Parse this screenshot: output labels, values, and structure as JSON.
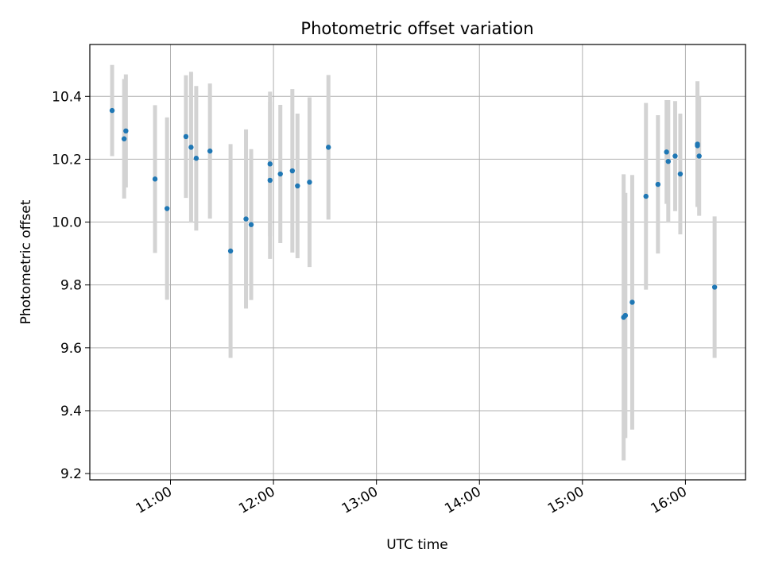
{
  "chart_data": {
    "type": "scatter",
    "title": "Photometric offset variation",
    "xlabel": "UTC time",
    "ylabel": "Photometric offset",
    "x_ticks": [
      "11:00",
      "12:00",
      "13:00",
      "14:00",
      "15:00",
      "16:00"
    ],
    "y_ticks": [
      "9.2",
      "9.4",
      "9.6",
      "9.8",
      "10.0",
      "10.2",
      "10.4"
    ],
    "xlim": [
      "10:13",
      "16:35"
    ],
    "ylim": [
      9.18,
      10.565
    ],
    "grid": true,
    "colors": {
      "points": "#1f77b4",
      "errorbars": "#d3d3d3",
      "grid": "#b0b0b0"
    },
    "series": [
      {
        "points": [
          {
            "x": "10:26",
            "y": 10.355,
            "yerr": 0.145
          },
          {
            "x": "10:33",
            "y": 10.265,
            "yerr": 0.19
          },
          {
            "x": "10:34",
            "y": 10.29,
            "yerr": 0.18
          },
          {
            "x": "10:51",
            "y": 10.137,
            "yerr": 0.235
          },
          {
            "x": "10:58",
            "y": 10.043,
            "yerr": 0.29
          },
          {
            "x": "11:09",
            "y": 10.272,
            "yerr": 0.195
          },
          {
            "x": "11:12",
            "y": 10.238,
            "yerr": 0.24
          },
          {
            "x": "11:15",
            "y": 10.203,
            "yerr": 0.23
          },
          {
            "x": "11:23",
            "y": 10.226,
            "yerr": 0.215
          },
          {
            "x": "11:35",
            "y": 9.908,
            "yerr": 0.34
          },
          {
            "x": "11:44",
            "y": 10.01,
            "yerr": 0.285
          },
          {
            "x": "11:47",
            "y": 9.992,
            "yerr": 0.24
          },
          {
            "x": "11:58",
            "y": 10.185,
            "yerr": 0.23
          },
          {
            "x": "11:58",
            "y": 10.133,
            "yerr": 0.25
          },
          {
            "x": "12:04",
            "y": 10.153,
            "yerr": 0.22
          },
          {
            "x": "12:11",
            "y": 10.163,
            "yerr": 0.26
          },
          {
            "x": "12:14",
            "y": 10.115,
            "yerr": 0.23
          },
          {
            "x": "12:21",
            "y": 10.127,
            "yerr": 0.27
          },
          {
            "x": "12:32",
            "y": 10.238,
            "yerr": 0.23
          },
          {
            "x": "15:24",
            "y": 9.697,
            "yerr": 0.455
          },
          {
            "x": "15:25",
            "y": 9.703,
            "yerr": 0.39
          },
          {
            "x": "15:29",
            "y": 9.745,
            "yerr": 0.405
          },
          {
            "x": "15:37",
            "y": 10.082,
            "yerr": 0.297
          },
          {
            "x": "15:44",
            "y": 10.12,
            "yerr": 0.22
          },
          {
            "x": "15:49",
            "y": 10.223,
            "yerr": 0.165
          },
          {
            "x": "15:50",
            "y": 10.193,
            "yerr": 0.195
          },
          {
            "x": "15:54",
            "y": 10.21,
            "yerr": 0.175
          },
          {
            "x": "15:57",
            "y": 10.153,
            "yerr": 0.192
          },
          {
            "x": "16:07",
            "y": 10.243,
            "yerr": 0.19
          },
          {
            "x": "16:07",
            "y": 10.248,
            "yerr": 0.2
          },
          {
            "x": "16:08",
            "y": 10.21,
            "yerr": 0.19
          },
          {
            "x": "16:17",
            "y": 9.793,
            "yerr": 0.225
          }
        ]
      }
    ]
  }
}
